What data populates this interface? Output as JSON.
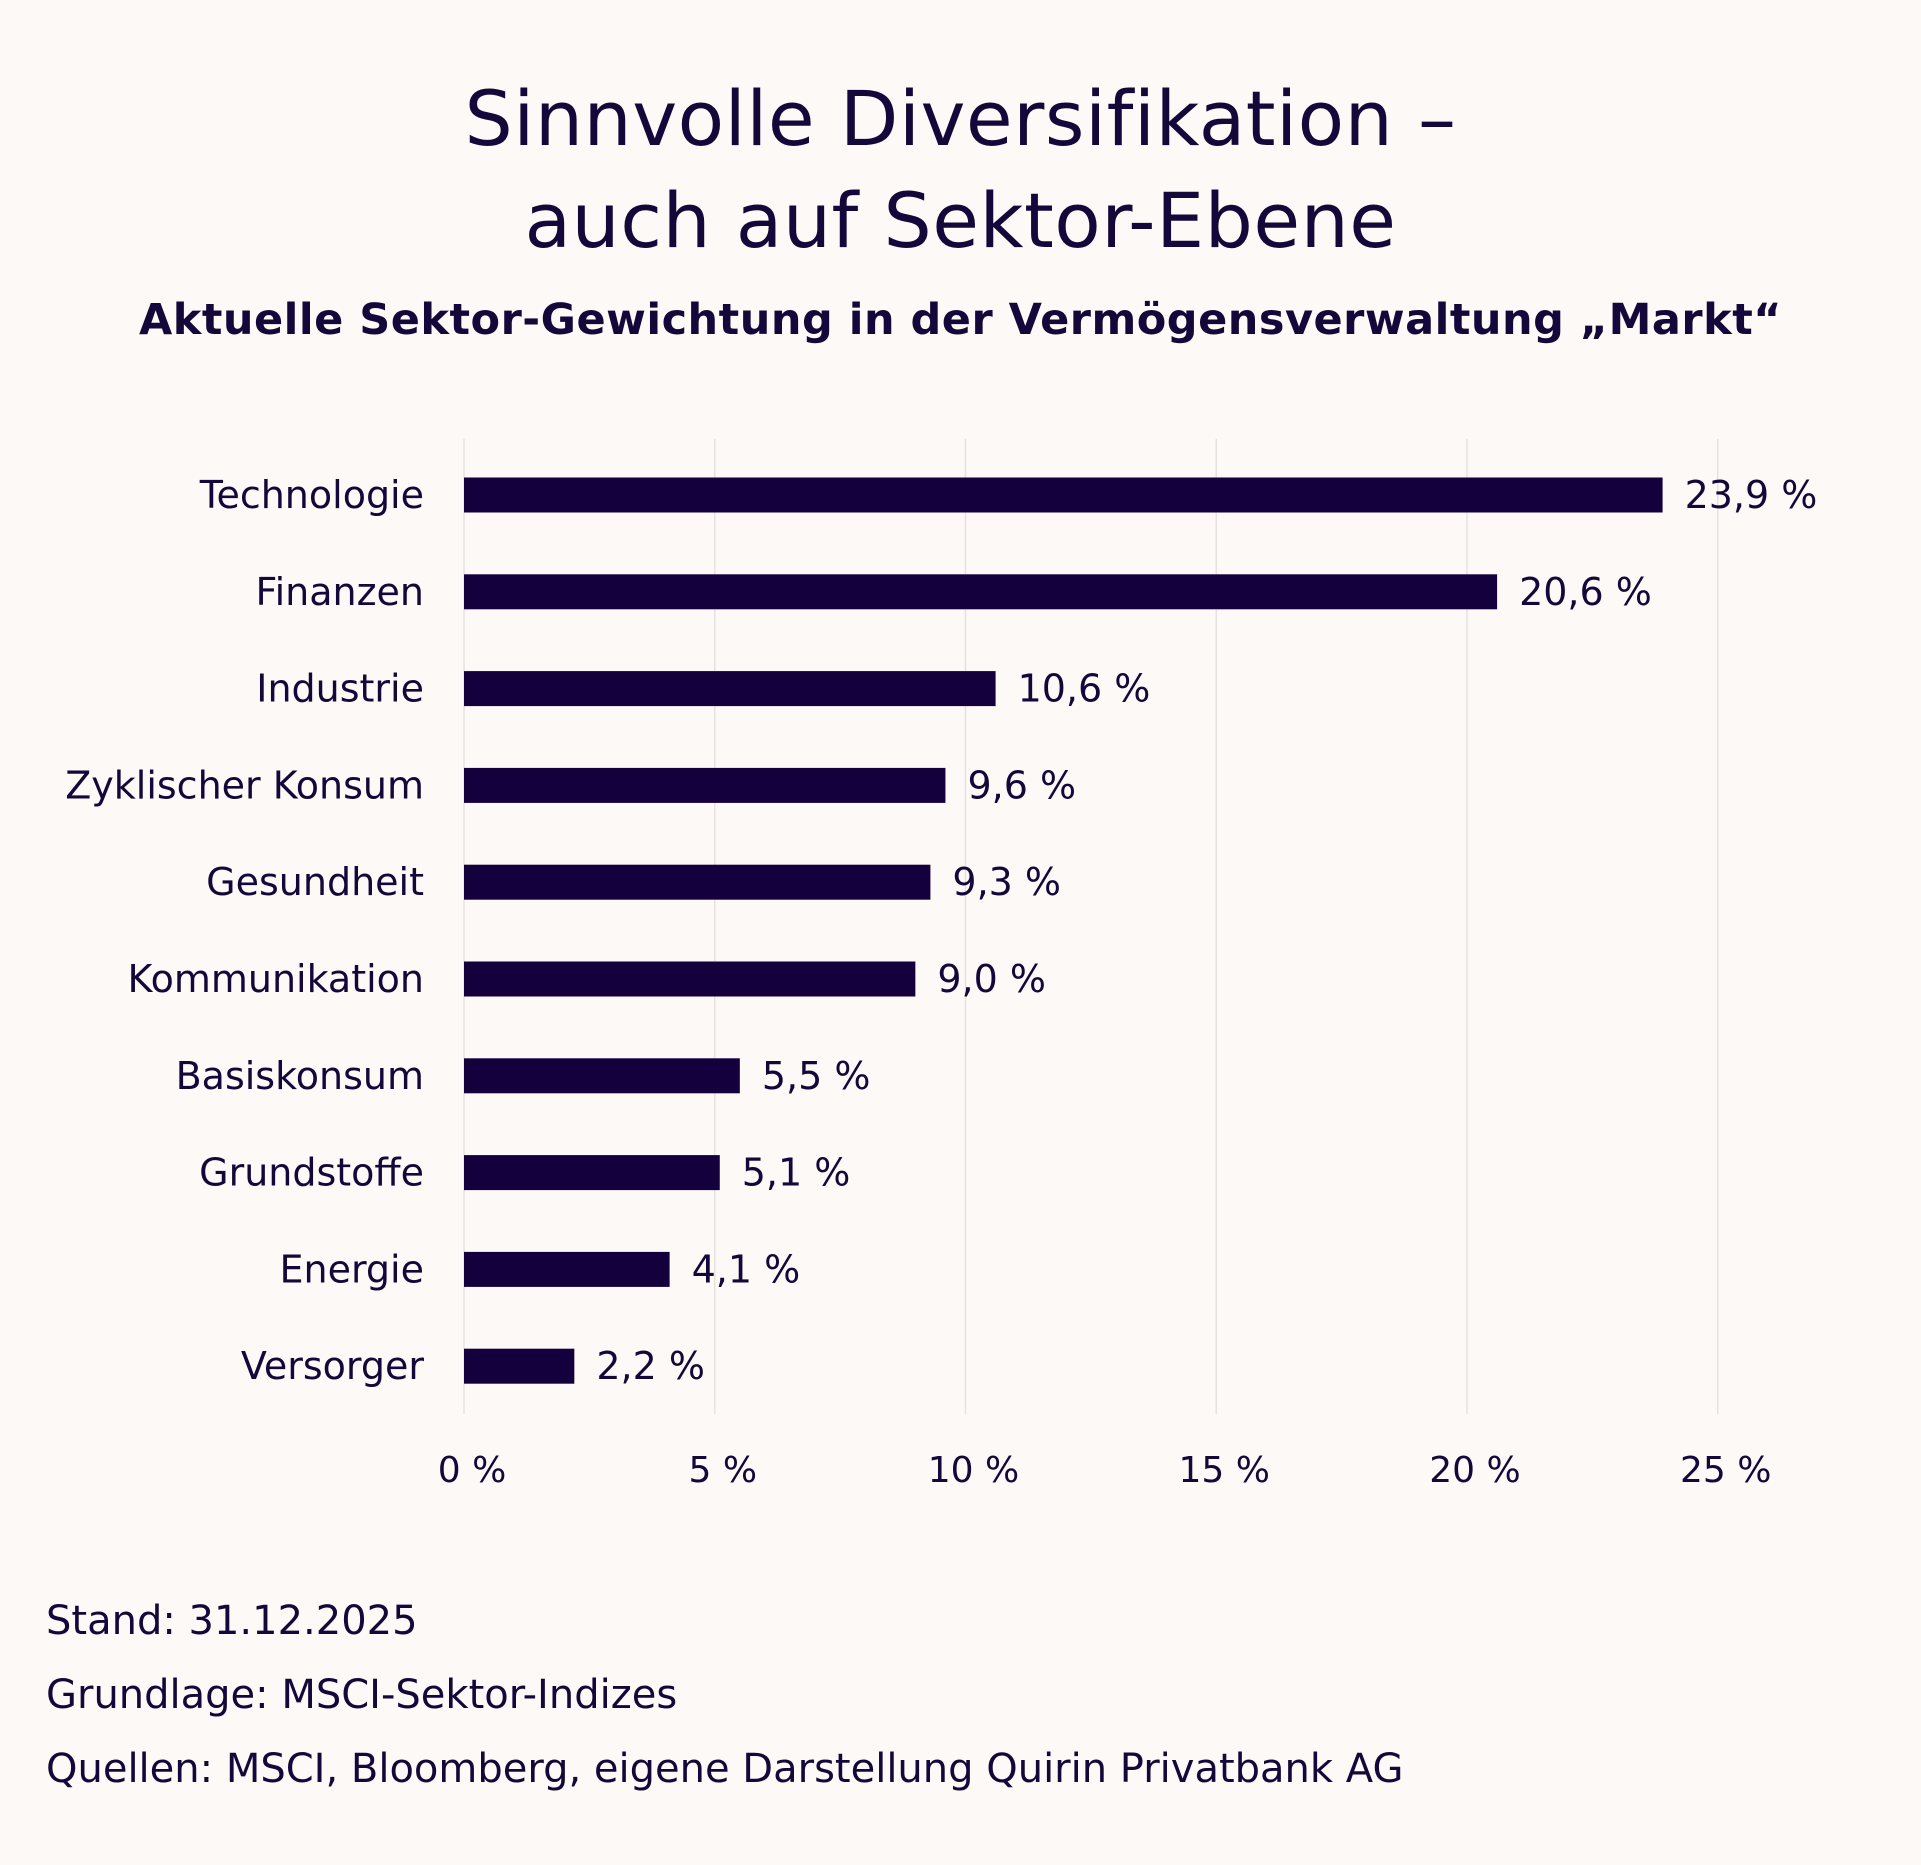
{
  "header": {
    "title_line1": "Sinnvolle Diversifikation –",
    "title_line2": "auch auf Sektor-Ebene",
    "subtitle": "Aktuelle Sektor-Gewichtung in der Vermögensverwaltung „Markt“"
  },
  "chart_data": {
    "type": "bar",
    "orientation": "horizontal",
    "title": "Sinnvolle Diversifikation – auch auf Sektor-Ebene",
    "subtitle": "Aktuelle Sektor-Gewichtung in der Vermögensverwaltung „Markt“",
    "categories": [
      "Technologie",
      "Finanzen",
      "Industrie",
      "Zyklischer Konsum",
      "Gesundheit",
      "Kommunikation",
      "Basiskonsum",
      "Grundstoffe",
      "Energie",
      "Versorger"
    ],
    "values": [
      23.9,
      20.6,
      10.6,
      9.6,
      9.3,
      9.0,
      5.5,
      5.1,
      4.1,
      2.2
    ],
    "value_labels": [
      "23,9 %",
      "20,6 %",
      "10,6 %",
      "9,6 %",
      "9,3 %",
      "9,0 %",
      "5,5 %",
      "5,1 %",
      "4,1 %",
      "2,2 %"
    ],
    "x_ticks": [
      0,
      5,
      10,
      15,
      20,
      25
    ],
    "x_tick_labels": [
      "0 %",
      "5 %",
      "10 %",
      "15 %",
      "20 %",
      "25 %"
    ],
    "xlim": [
      0,
      25
    ],
    "xlabel": "",
    "ylabel": "",
    "grid": "vertical",
    "legend": "none",
    "bar_color": "#14003c",
    "grid_color": "#e8e2dd"
  },
  "footer": {
    "stand": "Stand: 31.12.2025",
    "grundlage": "Grundlage: MSCI-Sektor-Indizes",
    "quellen": "Quellen: MSCI, Bloomberg, eigene Darstellung Quirin Privatbank AG"
  }
}
